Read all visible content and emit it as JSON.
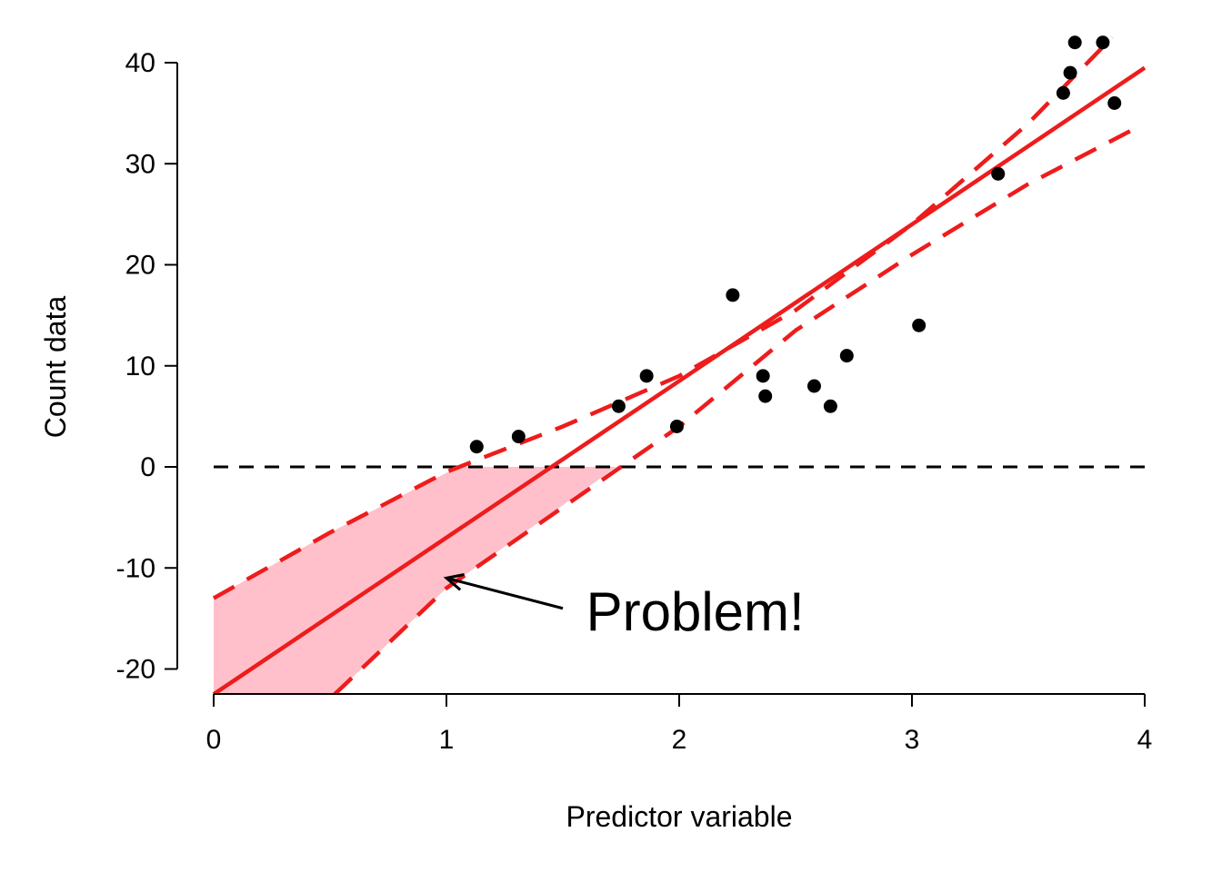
{
  "chart_data": {
    "type": "scatter",
    "title": "",
    "xlabel": "Predictor variable",
    "ylabel": "Count data",
    "xlim": [
      0,
      4
    ],
    "ylim": [
      -22.5,
      40
    ],
    "xticks": [
      0,
      1,
      2,
      3,
      4
    ],
    "yticks": [
      -20,
      -10,
      0,
      10,
      20,
      30,
      40
    ],
    "grid": false,
    "points": {
      "color": "#000000",
      "x": [
        1.13,
        1.31,
        1.74,
        1.86,
        1.99,
        2.23,
        2.36,
        2.37,
        2.58,
        2.65,
        2.72,
        3.03,
        3.37,
        3.65,
        3.68,
        3.7,
        3.82,
        3.87
      ],
      "y": [
        2,
        3,
        6,
        9,
        4,
        17,
        9,
        7,
        8,
        6,
        11,
        14,
        29,
        37,
        39,
        42,
        42,
        36
      ]
    },
    "fit_line": {
      "color": "#ee1c1c",
      "x": [
        0,
        4
      ],
      "y": [
        -22.5,
        39.5
      ]
    },
    "upper_ci": {
      "color": "#ee1c1c",
      "x": [
        0,
        0.5,
        1.0,
        1.5,
        2.0,
        2.5,
        3.0,
        3.5,
        3.86
      ],
      "y": [
        -13,
        -6.5,
        -0.5,
        4,
        9,
        15.5,
        24,
        34,
        42.5
      ]
    },
    "lower_ci": {
      "color": "#ee1c1c",
      "x": [
        0.52,
        1.0,
        1.5,
        2.0,
        2.5,
        3.0,
        3.5,
        3.96
      ],
      "y": [
        -22.5,
        -12,
        -4,
        4,
        13.5,
        21,
        28,
        33.5
      ]
    },
    "zero_line": {
      "y": 0,
      "x": [
        0,
        4
      ],
      "color": "#000000"
    },
    "shaded_region": {
      "color": "#ffc0cb",
      "x": [
        0,
        0.5,
        1.05,
        1.5,
        1.73,
        1.0,
        0.52,
        0
      ],
      "y": [
        -13,
        -6.5,
        0,
        0,
        0,
        -12,
        -22.5,
        -22.5
      ]
    },
    "annotation": {
      "text": "Problem!",
      "x": 1.6,
      "y": -14.2,
      "arrow_from": [
        1.5,
        -14
      ],
      "arrow_to": [
        1.0,
        -11
      ]
    }
  }
}
